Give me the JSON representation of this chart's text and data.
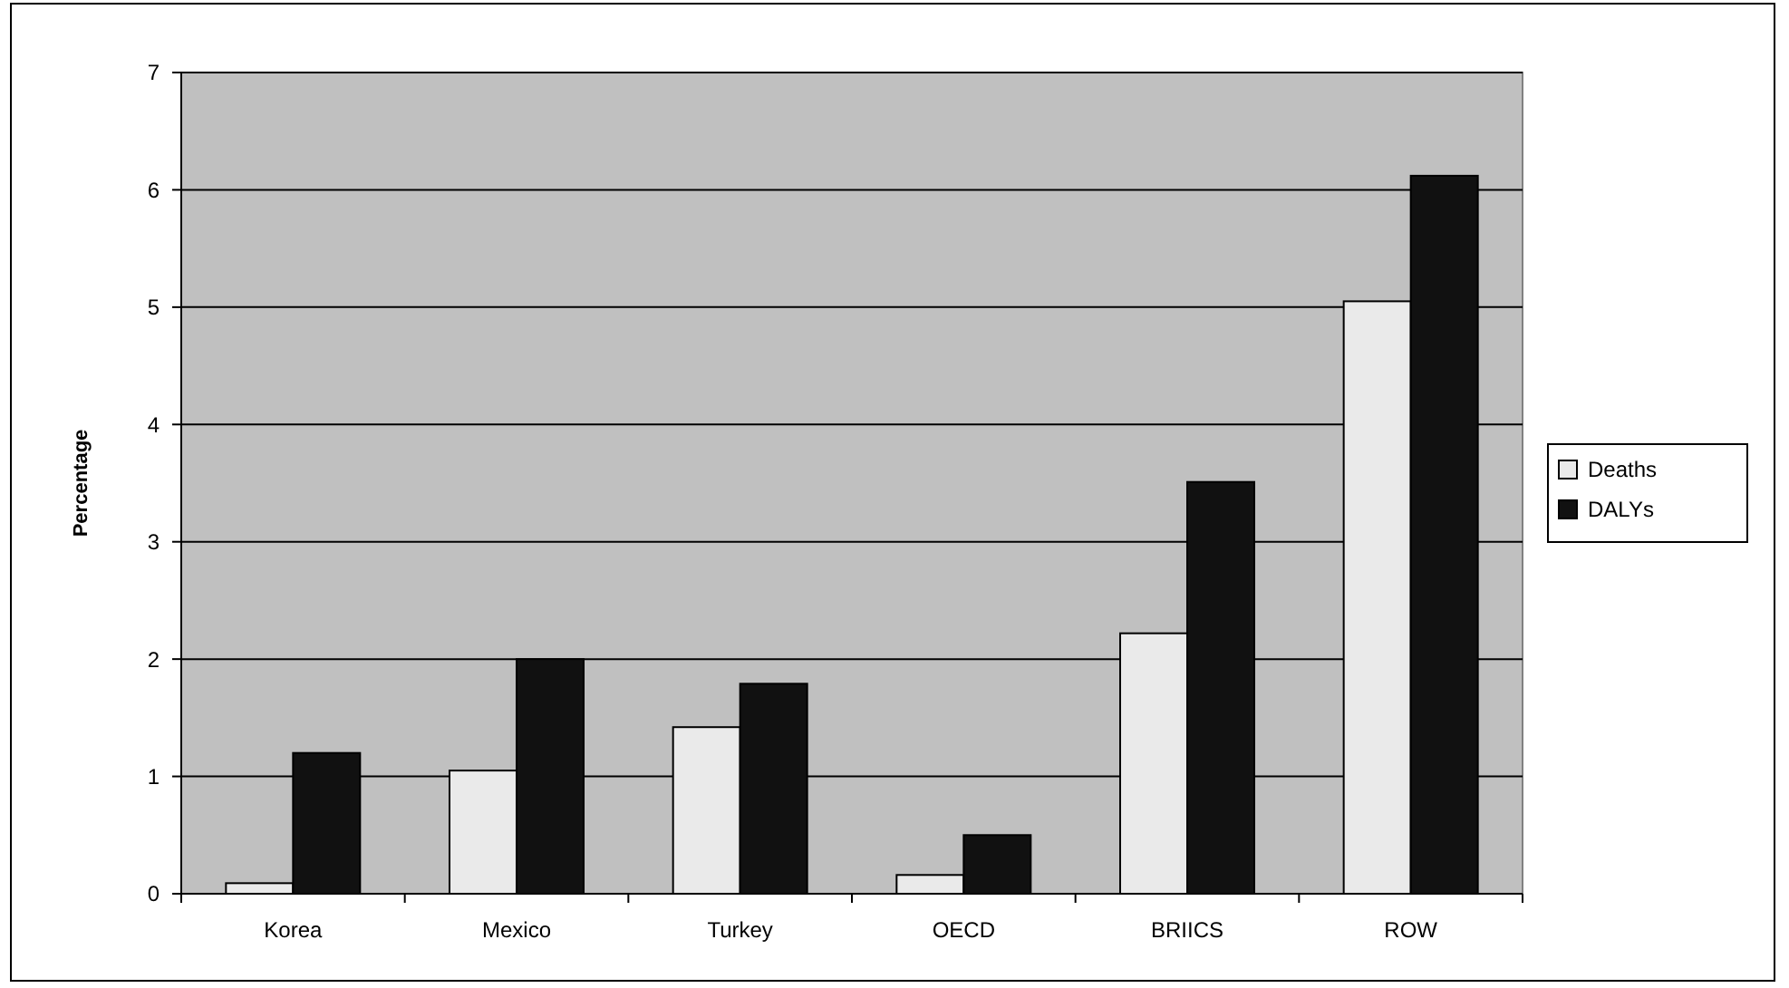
{
  "chart_data": {
    "type": "bar",
    "ylabel": "Percentage",
    "categories": [
      "Korea",
      "Mexico",
      "Turkey",
      "OECD",
      "BRIICS",
      "ROW"
    ],
    "series": [
      {
        "name": "Deaths",
        "color": "#eaeaea",
        "values": [
          0.09,
          1.05,
          1.42,
          0.16,
          2.22,
          5.05
        ]
      },
      {
        "name": "DALYs",
        "color": "#111111",
        "values": [
          1.2,
          2.0,
          1.79,
          0.5,
          3.51,
          6.12
        ]
      }
    ],
    "ylim": [
      0,
      7
    ],
    "yticks": [
      0,
      1,
      2,
      3,
      4,
      5,
      6,
      7
    ],
    "grid": "y",
    "legend": "right"
  }
}
